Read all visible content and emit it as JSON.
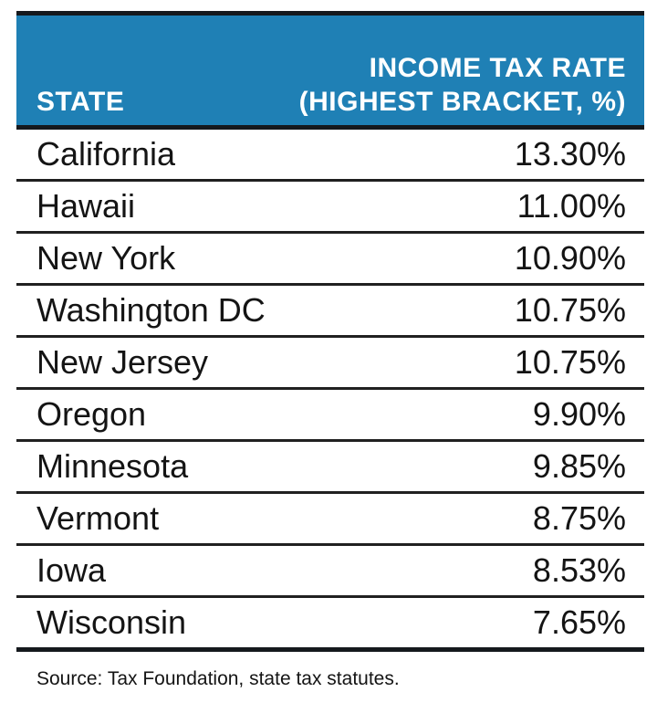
{
  "chart_data": {
    "type": "table",
    "columns": [
      "STATE",
      "INCOME TAX RATE (HIGHEST BRACKET, %)"
    ],
    "rows": [
      [
        "California",
        "13.30%"
      ],
      [
        "Hawaii",
        "11.00%"
      ],
      [
        "New York",
        "10.90%"
      ],
      [
        "Washington DC",
        "10.75%"
      ],
      [
        "New Jersey",
        "10.75%"
      ],
      [
        "Oregon",
        "9.90%"
      ],
      [
        "Minnesota",
        "9.85%"
      ],
      [
        "Vermont",
        "8.75%"
      ],
      [
        "Iowa",
        "8.53%"
      ],
      [
        "Wisconsin",
        "7.65%"
      ]
    ],
    "source": "Source: Tax Foundation, state tax statutes.",
    "layout": {
      "header_alignment": "state left, rate right",
      "value_alignment": "right",
      "grid": "horizontal dividers only"
    }
  },
  "table": {
    "header": {
      "state_label": "STATE",
      "rate_line1": "INCOME TAX RATE",
      "rate_line2": "(HIGHEST BRACKET, %)"
    },
    "rows": [
      {
        "state": "California",
        "rate": "13.30%"
      },
      {
        "state": "Hawaii",
        "rate": "11.00%"
      },
      {
        "state": "New York",
        "rate": "10.90%"
      },
      {
        "state": "Washington DC",
        "rate": "10.75%"
      },
      {
        "state": "New Jersey",
        "rate": "10.75%"
      },
      {
        "state": "Oregon",
        "rate": "9.90%"
      },
      {
        "state": "Minnesota",
        "rate": "9.85%"
      },
      {
        "state": "Vermont",
        "rate": "8.75%"
      },
      {
        "state": "Iowa",
        "rate": "8.53%"
      },
      {
        "state": "Wisconsin",
        "rate": "7.65%"
      }
    ],
    "source": "Source: Tax Foundation, state tax statutes."
  },
  "colors": {
    "page_bg": "#FFFFFF",
    "header_bg": "#1F80B5",
    "header_text": "#FFFFFF",
    "heavy_border": "#15191D",
    "row_divider": "#202020",
    "row_text": "#141414"
  }
}
